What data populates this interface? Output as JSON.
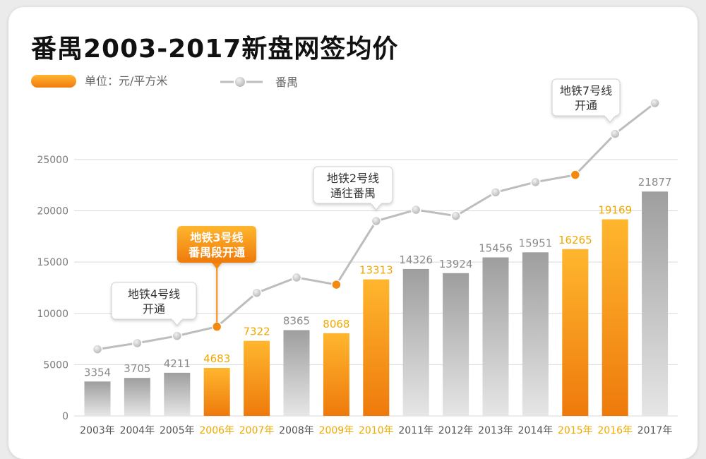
{
  "chart_data": {
    "type": "bar",
    "title": "番禺2003-2017新盘网签均价",
    "unit_label": "单位：元/平方米",
    "categories": [
      "2003年",
      "2004年",
      "2005年",
      "2006年",
      "2007年",
      "2008年",
      "2009年",
      "2010年",
      "2011年",
      "2012年",
      "2013年",
      "2014年",
      "2015年",
      "2016年",
      "2017年"
    ],
    "highlight_categories": [
      "2006年",
      "2007年",
      "2009年",
      "2010年",
      "2015年",
      "2016年"
    ],
    "values": [
      3354,
      3705,
      4211,
      4683,
      7322,
      8365,
      8068,
      13313,
      14326,
      13924,
      15456,
      15951,
      16265,
      19169,
      21877
    ],
    "line_series": {
      "name": "番禺",
      "values": [
        6500,
        7100,
        7800,
        8700,
        12000,
        13500,
        12800,
        19000,
        20100,
        19500,
        21800,
        22800,
        23500,
        27500,
        30500
      ],
      "highlight_points": [
        "2006年",
        "2009年",
        "2015年"
      ]
    },
    "yticks": [
      0,
      5000,
      10000,
      15000,
      20000,
      25000
    ],
    "ylim": [
      0,
      30500
    ],
    "grid": true,
    "annotations": [
      {
        "text_lines": [
          "地铁4号线",
          "开通"
        ],
        "target": "2005年",
        "style": "outline"
      },
      {
        "text_lines": [
          "地铁3号线",
          "番禺段开通"
        ],
        "target": "2006年",
        "style": "filled"
      },
      {
        "text_lines": [
          "地铁2号线",
          "通往番禺"
        ],
        "target": "2010年",
        "style": "outline"
      },
      {
        "text_lines": [
          "地铁7号线",
          "开通"
        ],
        "target": "2016年",
        "style": "outline"
      }
    ],
    "colors": {
      "highlight_bar_top": "#ffb62e",
      "highlight_bar_bottom": "#ee7a0c",
      "bar_top": "#9e9e9e",
      "bar_bottom": "#e2e2e2",
      "highlight_label": "#f0a800",
      "label": "#8a8a8a",
      "line": "#bdbdbd",
      "point_orange": "#f28a12",
      "grid": "#d9d9d9",
      "axis_text": "#7a7a7a"
    }
  }
}
